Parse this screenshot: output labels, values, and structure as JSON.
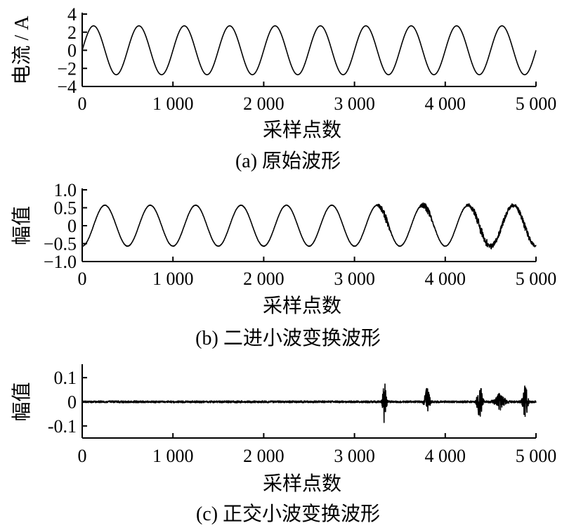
{
  "chart_data": [
    {
      "type": "line",
      "caption": "(a)  原始波形",
      "xlabel": "采样点数",
      "ylabel": "电流 / A",
      "xlim": [
        0,
        5000
      ],
      "ylim": [
        -4,
        4
      ],
      "xticks": [
        0,
        1000,
        2000,
        3000,
        4000,
        5000
      ],
      "xtick_labels": [
        "0",
        "1 000",
        "2 000",
        "3 000",
        "4 000",
        "5 000"
      ],
      "yticks": [
        4,
        2,
        0,
        -2,
        -4
      ],
      "ytick_labels": [
        "4",
        "2",
        "0",
        "−2",
        "−4"
      ],
      "series": [
        {
          "signal": "sine",
          "amplitude": 2.7,
          "period": 500,
          "x_first_peak": 125,
          "x_start": 0,
          "x_end": 5000,
          "noise": 0.0
        }
      ]
    },
    {
      "type": "line",
      "caption": "(b)  二进小波变换波形",
      "xlabel": "采样点数",
      "ylabel": "幅值",
      "xlim": [
        0,
        5000
      ],
      "ylim": [
        -1.0,
        1.0
      ],
      "xticks": [
        0,
        1000,
        2000,
        3000,
        4000,
        5000
      ],
      "xtick_labels": [
        "0",
        "1 000",
        "2 000",
        "3 000",
        "4 000",
        "5 000"
      ],
      "yticks": [
        1.0,
        0.5,
        0,
        -0.5,
        -1.0
      ],
      "ytick_labels": [
        "1.0",
        "0.5",
        "0",
        "−0.5",
        "−1.0"
      ],
      "series": [
        {
          "signal": "sine",
          "amplitude": 0.57,
          "period": 500,
          "x_first_peak": 250,
          "x_start": 0,
          "x_end": 5000,
          "noise": 0.006,
          "disturbances": [
            {
              "x": 3330,
              "width": 60,
              "amp": 0.12
            },
            {
              "x": 3800,
              "width": 70,
              "amp": 0.1
            },
            {
              "x": 4380,
              "width": 120,
              "amp": 0.12
            },
            {
              "x": 4600,
              "width": 150,
              "amp": 0.08
            },
            {
              "x": 4880,
              "width": 100,
              "amp": 0.1
            }
          ]
        }
      ]
    },
    {
      "type": "line",
      "caption": "(c)  正交小波变换波形",
      "xlabel": "采样点数",
      "ylabel": "幅值",
      "xlim": [
        0,
        5000
      ],
      "ylim": [
        -0.15,
        0.15
      ],
      "xticks": [
        0,
        1000,
        2000,
        3000,
        4000,
        5000
      ],
      "xtick_labels": [
        "0",
        "1 000",
        "2 000",
        "3 000",
        "4 000",
        "5 000"
      ],
      "yticks": [
        0.1,
        0,
        -0.1
      ],
      "ytick_labels": [
        "0.1",
        "0",
        "-0.1"
      ],
      "series": [
        {
          "signal": "noise",
          "baseline": 0,
          "noise": 0.004,
          "x_start": 0,
          "x_end": 5000,
          "spikes": [
            {
              "x": 3330,
              "width": 40,
              "amp": 0.1
            },
            {
              "x": 3800,
              "width": 60,
              "amp": 0.06
            },
            {
              "x": 4380,
              "width": 60,
              "amp": 0.07
            },
            {
              "x": 4600,
              "width": 120,
              "amp": 0.035
            },
            {
              "x": 4880,
              "width": 60,
              "amp": 0.07
            }
          ]
        }
      ]
    }
  ]
}
